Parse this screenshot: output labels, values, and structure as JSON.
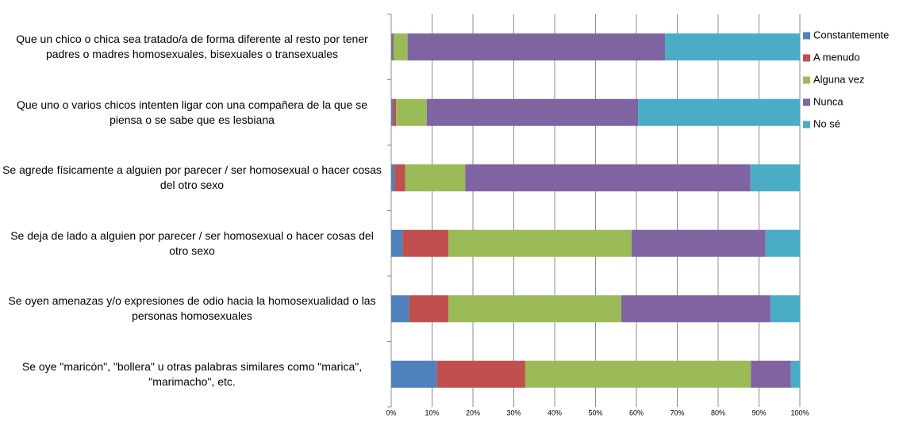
{
  "chart_data": {
    "type": "stacked_barh",
    "categories": [
      "Que un chico o chica sea tratado/a de forma diferente al resto por tener padres o madres homosexuales, bisexuales o transexuales",
      "Que uno o varios chicos intenten ligar con una compañera de la que se piensa o se sabe que es lesbiana",
      "Se agrede físicamente a alguien por parecer / ser homosexual o hacer cosas del otro sexo",
      "Se deja de lado a alguien por parecer / ser homosexual o hacer cosas del otro sexo",
      "Se oyen amenazas y/o expresiones de odio hacia la homosexualidad o las personas homosexuales",
      "Se oye \"maricón\", \"bollera\" u otras palabras similares como \"marica\", \"marimacho\", etc."
    ],
    "series": [
      {
        "name": "Constantemente",
        "color": "#4f81bd",
        "values": [
          0.3,
          0.4,
          0.8,
          2.8,
          4.4,
          11.2
        ]
      },
      {
        "name": "A menudo",
        "color": "#c0504d",
        "values": [
          0.3,
          0.8,
          2.6,
          11.2,
          9.6,
          21.6
        ]
      },
      {
        "name": "Alguna vez",
        "color": "#9bbb59",
        "values": [
          3.4,
          7.5,
          14.7,
          44.8,
          42.3,
          55.2
        ]
      },
      {
        "name": "Nunca",
        "color": "#8064a2",
        "values": [
          63.0,
          51.7,
          69.8,
          32.8,
          36.5,
          9.8
        ]
      },
      {
        "name": "No sé",
        "color": "#4bacc6",
        "values": [
          33.0,
          39.6,
          12.1,
          8.4,
          7.2,
          2.2
        ]
      }
    ],
    "xlim": [
      0,
      100
    ],
    "xticks": [
      {
        "value": 0,
        "label": "0%"
      },
      {
        "value": 10,
        "label": "10%"
      },
      {
        "value": 20,
        "label": "20%"
      },
      {
        "value": 30,
        "label": "30%"
      },
      {
        "value": 40,
        "label": "40%"
      },
      {
        "value": 50,
        "label": "50%"
      },
      {
        "value": 60,
        "label": "60%"
      },
      {
        "value": 70,
        "label": "70%"
      },
      {
        "value": 80,
        "label": "80%"
      },
      {
        "value": 90,
        "label": "90%"
      },
      {
        "value": 100,
        "label": "100%"
      }
    ],
    "grid": true,
    "legend": "right"
  }
}
